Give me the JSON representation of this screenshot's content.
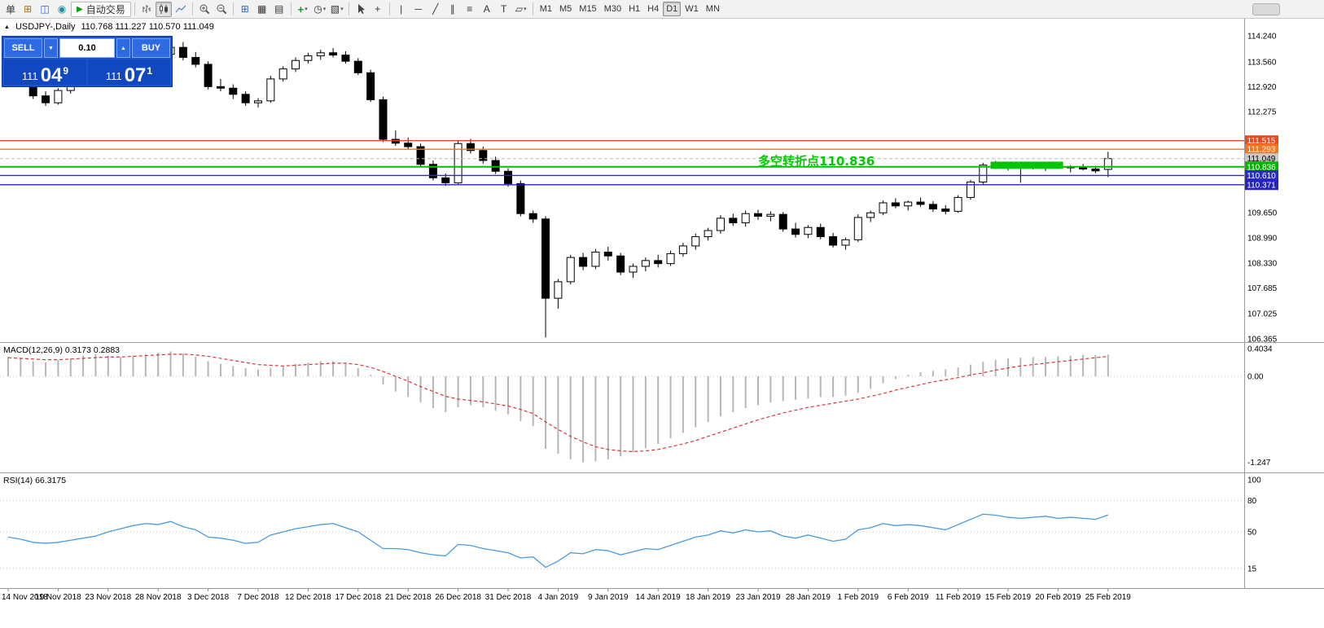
{
  "toolbar": {
    "new_order_label": "单",
    "auto_trading_label": "自动交易",
    "text_tool": "A",
    "label_tool": "T",
    "timeframes": [
      "M1",
      "M5",
      "M15",
      "M30",
      "H1",
      "H4",
      "D1",
      "W1",
      "MN"
    ],
    "active_timeframe": "D1"
  },
  "icons": {
    "title_marker": "▲",
    "play": "▶",
    "dropdown": "▾",
    "up": "▲",
    "down": "▼",
    "plus": "+",
    "grid": "⊞",
    "tile": "▦",
    "cascade": "▤",
    "clock": "◷",
    "template": "▧",
    "profiles": "◫",
    "globe": "◉",
    "new_chart": "⊞",
    "crosshair": "+",
    "vline": "|",
    "hline": "─",
    "trendline": "╱",
    "channel": "∥",
    "fibo": "≡",
    "shapes": "▱"
  },
  "trade_panel": {
    "sell_label": "SELL",
    "buy_label": "BUY",
    "volume": "0.10",
    "sell_price": {
      "int": "111",
      "dec": "04",
      "sup": "9"
    },
    "buy_price": {
      "int": "111",
      "dec": "07",
      "sup": "1"
    }
  },
  "chart_data": {
    "type": "candlestick",
    "symbol_period": "USDJPY-,Daily",
    "ohlc_text": "110.768 111.227 110.570 111.049",
    "current_price": 111.049,
    "price_axis_ticks": [
      "114.240",
      "113.560",
      "112.920",
      "112.275",
      "109.650",
      "108.990",
      "108.330",
      "107.685",
      "107.025",
      "106.365"
    ],
    "x_label_step": 4,
    "x_labels": [
      "14 Nov 2018",
      "19 Nov 2018",
      "23 Nov 2018",
      "28 Nov 2018",
      "3 Dec 2018",
      "7 Dec 2018",
      "12 Dec 2018",
      "17 Dec 2018",
      "21 Dec 2018",
      "26 Dec 2018",
      "31 Dec 2018",
      "4 Jan 2019",
      "9 Jan 2019",
      "14 Jan 2019",
      "18 Jan 2019",
      "23 Jan 2019",
      "28 Jan 2019",
      "1 Feb 2019",
      "6 Feb 2019",
      "11 Feb 2019",
      "15 Feb 2019",
      "20 Feb 2019",
      "25 Feb 2019"
    ],
    "candles": [
      [
        113.78,
        113.86,
        113.55,
        113.63
      ],
      [
        113.63,
        113.7,
        113.35,
        113.42
      ],
      [
        113.42,
        113.48,
        112.6,
        112.68
      ],
      [
        112.68,
        112.8,
        112.42,
        112.5
      ],
      [
        112.5,
        112.88,
        112.45,
        112.82
      ],
      [
        112.82,
        113.02,
        112.74,
        112.96
      ],
      [
        112.96,
        113.18,
        112.92,
        113.12
      ],
      [
        113.12,
        113.3,
        113.05,
        113.24
      ],
      [
        113.24,
        113.42,
        113.18,
        113.36
      ],
      [
        113.36,
        113.52,
        113.28,
        113.46
      ],
      [
        113.46,
        113.6,
        113.38,
        113.55
      ],
      [
        113.55,
        113.72,
        113.48,
        113.66
      ],
      [
        113.66,
        113.82,
        113.58,
        113.76
      ],
      [
        113.76,
        114.0,
        113.68,
        113.94
      ],
      [
        113.94,
        114.08,
        113.6,
        113.68
      ],
      [
        113.68,
        113.82,
        113.42,
        113.5
      ],
      [
        113.5,
        113.58,
        112.85,
        112.92
      ],
      [
        112.92,
        113.12,
        112.8,
        112.88
      ],
      [
        112.88,
        112.98,
        112.6,
        112.72
      ],
      [
        112.72,
        112.8,
        112.42,
        112.5
      ],
      [
        112.5,
        112.62,
        112.38,
        112.55
      ],
      [
        112.55,
        113.2,
        112.5,
        113.12
      ],
      [
        113.12,
        113.45,
        113.05,
        113.38
      ],
      [
        113.38,
        113.68,
        113.3,
        113.6
      ],
      [
        113.6,
        113.8,
        113.52,
        113.72
      ],
      [
        113.72,
        113.88,
        113.62,
        113.8
      ],
      [
        113.8,
        113.92,
        113.68,
        113.74
      ],
      [
        113.74,
        113.84,
        113.52,
        113.58
      ],
      [
        113.58,
        113.66,
        113.22,
        113.28
      ],
      [
        113.28,
        113.36,
        112.52,
        112.58
      ],
      [
        112.58,
        112.66,
        111.48,
        111.55
      ],
      [
        111.55,
        111.78,
        111.38,
        111.45
      ],
      [
        111.45,
        111.6,
        111.28,
        111.36
      ],
      [
        111.36,
        111.44,
        110.82,
        110.9
      ],
      [
        110.9,
        111.0,
        110.48,
        110.55
      ],
      [
        110.55,
        110.66,
        110.34,
        110.42
      ],
      [
        110.42,
        111.5,
        110.38,
        111.44
      ],
      [
        111.44,
        111.56,
        111.18,
        111.26
      ],
      [
        111.26,
        111.36,
        110.92,
        111.0
      ],
      [
        111.0,
        111.1,
        110.65,
        110.72
      ],
      [
        110.72,
        110.8,
        110.32,
        110.4
      ],
      [
        110.4,
        110.48,
        109.55,
        109.62
      ],
      [
        109.62,
        109.7,
        109.38,
        109.48
      ],
      [
        109.48,
        109.55,
        106.4,
        107.42
      ],
      [
        107.42,
        107.92,
        107.15,
        107.85
      ],
      [
        107.85,
        108.55,
        107.78,
        108.48
      ],
      [
        108.48,
        108.6,
        108.15,
        108.25
      ],
      [
        108.25,
        108.7,
        108.18,
        108.62
      ],
      [
        108.62,
        108.76,
        108.4,
        108.52
      ],
      [
        108.52,
        108.6,
        108.02,
        108.1
      ],
      [
        108.1,
        108.32,
        107.95,
        108.25
      ],
      [
        108.25,
        108.48,
        108.12,
        108.4
      ],
      [
        108.4,
        108.55,
        108.22,
        108.32
      ],
      [
        108.32,
        108.66,
        108.26,
        108.58
      ],
      [
        108.58,
        108.86,
        108.5,
        108.78
      ],
      [
        108.78,
        109.1,
        108.68,
        109.02
      ],
      [
        109.02,
        109.25,
        108.92,
        109.18
      ],
      [
        109.18,
        109.58,
        109.1,
        109.5
      ],
      [
        109.5,
        109.62,
        109.3,
        109.38
      ],
      [
        109.38,
        109.7,
        109.28,
        109.62
      ],
      [
        109.62,
        109.72,
        109.46,
        109.55
      ],
      [
        109.55,
        109.68,
        109.42,
        109.6
      ],
      [
        109.6,
        109.66,
        109.15,
        109.22
      ],
      [
        109.22,
        109.38,
        109.0,
        109.08
      ],
      [
        109.08,
        109.32,
        108.98,
        109.26
      ],
      [
        109.26,
        109.36,
        108.95,
        109.02
      ],
      [
        109.02,
        109.12,
        108.74,
        108.8
      ],
      [
        108.8,
        109.0,
        108.68,
        108.94
      ],
      [
        108.94,
        109.6,
        108.88,
        109.52
      ],
      [
        109.52,
        109.7,
        109.4,
        109.64
      ],
      [
        109.64,
        109.96,
        109.58,
        109.9
      ],
      [
        109.9,
        110.02,
        109.76,
        109.82
      ],
      [
        109.82,
        109.96,
        109.7,
        109.92
      ],
      [
        109.92,
        110.04,
        109.8,
        109.86
      ],
      [
        109.86,
        109.94,
        109.66,
        109.74
      ],
      [
        109.74,
        109.84,
        109.6,
        109.68
      ],
      [
        109.68,
        110.1,
        109.64,
        110.04
      ],
      [
        110.04,
        110.5,
        109.98,
        110.44
      ],
      [
        110.44,
        110.94,
        110.38,
        110.88
      ],
      [
        110.88,
        110.99,
        110.78,
        110.84
      ],
      [
        110.84,
        110.92,
        110.74,
        110.8
      ],
      [
        110.8,
        110.89,
        110.42,
        110.86
      ],
      [
        110.86,
        110.93,
        110.77,
        110.82
      ],
      [
        110.82,
        110.9,
        110.73,
        110.87
      ],
      [
        110.87,
        110.94,
        110.78,
        110.81
      ],
      [
        110.81,
        110.88,
        110.69,
        110.84
      ],
      [
        110.84,
        110.91,
        110.74,
        110.78
      ],
      [
        110.78,
        110.86,
        110.67,
        110.73
      ],
      [
        110.768,
        111.227,
        110.57,
        111.049
      ]
    ],
    "hlines": [
      {
        "price": 111.515,
        "label": "111.515",
        "color": "#e9491f",
        "badge": "#e9491f",
        "text_color": "#ffffff",
        "style": "solid",
        "width": 1.4
      },
      {
        "price": 111.293,
        "label": "111.293",
        "color": "#f0761f",
        "badge": "#f0761f",
        "text_color": "#ffffff",
        "style": "solid",
        "width": 1.4
      },
      {
        "price": 111.049,
        "label": "111.049",
        "color": "#b8b8b8",
        "badge": "#c9c9c9",
        "text_color": "#000000",
        "style": "dash",
        "width": 1
      },
      {
        "price": 110.836,
        "label": "110.836",
        "color": "#00c000",
        "badge": "#00b400",
        "text_color": "#ffffff",
        "style": "solid",
        "width": 2
      },
      {
        "price": 110.61,
        "label": "110.610",
        "color": "#2a2ad2",
        "badge": "#2a2ad2",
        "text_color": "#ffffff",
        "style": "solid",
        "width": 1.4
      },
      {
        "price": 110.371,
        "label": "110.371",
        "color": "#2424bd",
        "badge": "#2424bd",
        "text_color": "#ffffff",
        "style": "solid",
        "width": 1.4
      }
    ],
    "highlight_rect": {
      "start_index": 78.6,
      "end_index": 84.4,
      "price_top": 110.97,
      "price_bottom": 110.785,
      "color": "#00c400"
    },
    "annotation": {
      "text": "多空转折点110.836",
      "color": "#00cc00",
      "at_index": 60,
      "price": 110.87
    },
    "macd": {
      "title": "MACD(12,26,9) 0.3173 0.2883",
      "axis": {
        "max": "0.4034",
        "zero": "0.00",
        "min": "-1.247"
      },
      "histogram": [
        0.28,
        0.26,
        0.22,
        0.2,
        0.24,
        0.26,
        0.3,
        0.32,
        0.3,
        0.28,
        0.3,
        0.32,
        0.34,
        0.36,
        0.33,
        0.28,
        0.22,
        0.18,
        0.15,
        0.12,
        0.1,
        0.12,
        0.15,
        0.18,
        0.2,
        0.22,
        0.22,
        0.18,
        0.12,
        0.02,
        -0.12,
        -0.22,
        -0.3,
        -0.38,
        -0.46,
        -0.52,
        -0.45,
        -0.42,
        -0.45,
        -0.5,
        -0.55,
        -0.65,
        -0.72,
        -1.05,
        -1.12,
        -1.2,
        -1.247,
        -1.23,
        -1.2,
        -1.16,
        -1.1,
        -1.04,
        -0.98,
        -0.9,
        -0.82,
        -0.74,
        -0.66,
        -0.58,
        -0.52,
        -0.46,
        -0.42,
        -0.38,
        -0.36,
        -0.34,
        -0.32,
        -0.3,
        -0.3,
        -0.28,
        -0.24,
        -0.18,
        -0.1,
        -0.04,
        0.02,
        0.06,
        0.08,
        0.1,
        0.13,
        0.17,
        0.21,
        0.24,
        0.26,
        0.27,
        0.28,
        0.28,
        0.29,
        0.3,
        0.31,
        0.31,
        0.3173
      ],
      "signal": [
        0.27,
        0.26,
        0.25,
        0.24,
        0.24,
        0.25,
        0.26,
        0.27,
        0.28,
        0.28,
        0.29,
        0.3,
        0.31,
        0.32,
        0.32,
        0.31,
        0.29,
        0.26,
        0.23,
        0.2,
        0.17,
        0.16,
        0.15,
        0.16,
        0.17,
        0.18,
        0.19,
        0.19,
        0.17,
        0.13,
        0.07,
        0.0,
        -0.07,
        -0.15,
        -0.22,
        -0.29,
        -0.33,
        -0.35,
        -0.37,
        -0.4,
        -0.43,
        -0.48,
        -0.54,
        -0.66,
        -0.77,
        -0.87,
        -0.95,
        -1.02,
        -1.06,
        -1.08,
        -1.09,
        -1.08,
        -1.06,
        -1.02,
        -0.98,
        -0.93,
        -0.87,
        -0.81,
        -0.75,
        -0.69,
        -0.63,
        -0.58,
        -0.53,
        -0.49,
        -0.45,
        -0.42,
        -0.39,
        -0.36,
        -0.33,
        -0.29,
        -0.25,
        -0.2,
        -0.16,
        -0.12,
        -0.08,
        -0.05,
        -0.02,
        0.02,
        0.05,
        0.09,
        0.12,
        0.15,
        0.17,
        0.19,
        0.21,
        0.23,
        0.25,
        0.27,
        0.2883
      ]
    },
    "rsi": {
      "title": "RSI(14) 66.3175",
      "ticks": [
        "100",
        "80",
        "50",
        "15"
      ],
      "levels": [
        80,
        50,
        15
      ],
      "values": [
        45,
        43,
        40,
        39,
        40,
        42,
        44,
        46,
        50,
        53,
        56,
        58,
        57,
        60,
        55,
        52,
        45,
        44,
        42,
        39,
        40,
        47,
        50,
        53,
        55,
        57,
        58,
        54,
        50,
        42,
        34,
        34,
        33,
        30,
        28,
        27,
        38,
        37,
        34,
        32,
        30,
        25,
        26,
        16,
        22,
        30,
        29,
        33,
        32,
        28,
        31,
        34,
        33,
        37,
        41,
        45,
        47,
        51,
        49,
        52,
        50,
        51,
        46,
        44,
        47,
        44,
        41,
        43,
        52,
        54,
        58,
        56,
        57,
        56,
        54,
        52,
        57,
        62,
        67,
        66,
        64,
        63,
        64,
        65,
        63,
        64,
        63,
        62,
        66.3175
      ]
    }
  }
}
